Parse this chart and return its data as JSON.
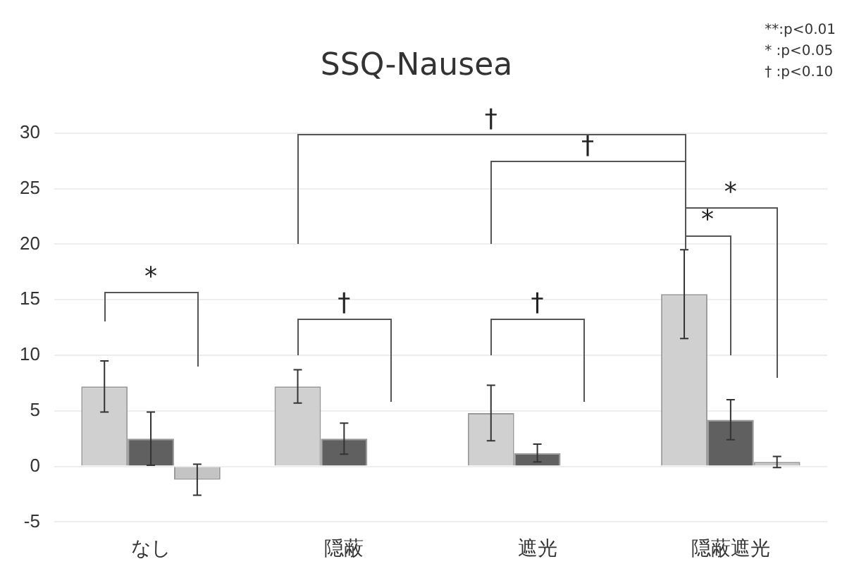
{
  "chart_data": {
    "type": "bar",
    "title": "SSQ-Nausea",
    "categories": [
      "なし",
      "隠蔽",
      "遮光",
      "隠蔽遮光"
    ],
    "series": [
      {
        "color": "#d0d0d0",
        "values": [
          7.2,
          7.2,
          4.8,
          15.5
        ],
        "errors": [
          2.3,
          1.5,
          2.5,
          4
        ]
      },
      {
        "color": "#606060",
        "values": [
          2.5,
          2.5,
          1.2,
          4.2
        ],
        "errors": [
          2.4,
          1.4,
          0.8,
          1.8
        ]
      },
      {
        "color": "#c4c4c4",
        "values": [
          -1.2,
          null,
          null,
          0.4
        ],
        "errors": [
          1.4,
          null,
          null,
          0.5
        ]
      }
    ],
    "ylim": [
      -5,
      30
    ],
    "yticks": [
      -5,
      0,
      5,
      10,
      15,
      20,
      25,
      30
    ],
    "grid": "y",
    "legend": false,
    "annotations": [
      "*",
      "†",
      "†",
      "†",
      "†",
      "*",
      "*",
      "**:p<0.01",
      "* :p<0.05",
      "† :p<0.10"
    ]
  }
}
